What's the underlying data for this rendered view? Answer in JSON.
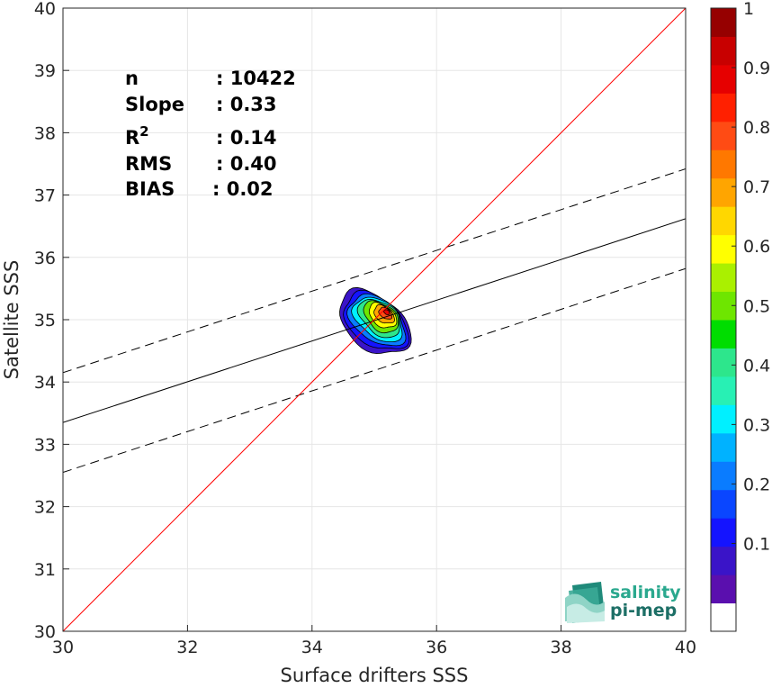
{
  "chart_data": {
    "type": "heatmap",
    "title": "",
    "xlabel": "Surface drifters SSS",
    "ylabel": "Satellite SSS",
    "xlim": [
      30,
      40
    ],
    "ylim": [
      30,
      40
    ],
    "xticks": [
      "30",
      "32",
      "34",
      "36",
      "38",
      "40"
    ],
    "yticks": [
      "30",
      "31",
      "32",
      "33",
      "34",
      "35",
      "36",
      "37",
      "38",
      "39",
      "40"
    ],
    "grid": true,
    "stats": [
      {
        "key": "n",
        "value": ": 10422"
      },
      {
        "key": "Slope",
        "value": ": 0.33"
      },
      {
        "key": "R",
        "sup": "2",
        "value": ": 0.14"
      },
      {
        "key": "RMS",
        "value": ": 0.40"
      },
      {
        "key": "BIAS",
        "value": ": 0.02"
      }
    ],
    "lines": {
      "identity": {
        "color": "#ff0000",
        "points": [
          [
            30,
            30
          ],
          [
            40,
            40
          ]
        ]
      },
      "regression": {
        "color": "#000000",
        "points": [
          [
            30,
            33.35
          ],
          [
            40,
            36.62
          ]
        ]
      },
      "upper_bound": {
        "color": "#000000",
        "dash": true,
        "points": [
          [
            30,
            34.15
          ],
          [
            40,
            37.42
          ]
        ]
      },
      "lower_bound": {
        "color": "#000000",
        "dash": true,
        "points": [
          [
            30,
            32.55
          ],
          [
            40,
            35.82
          ]
        ]
      }
    },
    "density": {
      "center": [
        35.0,
        34.95
      ],
      "peak": [
        35.2,
        35.12
      ],
      "levels": [
        0.05,
        0.1,
        0.2,
        0.3,
        0.4,
        0.5,
        0.6,
        0.7,
        0.8,
        0.9
      ]
    },
    "colorbar": {
      "range": [
        0,
        1
      ],
      "ticks": [
        "0.1",
        "0.2",
        "0.3",
        "0.4",
        "0.5",
        "0.6",
        "0.7",
        "0.8",
        "0.9",
        "1"
      ],
      "colors": [
        "#ffffff",
        "#5a0fae",
        "#3a14c8",
        "#1414ff",
        "#0a46ff",
        "#0a7cff",
        "#00b2ff",
        "#00f0ff",
        "#28f0b4",
        "#2de68c",
        "#00dd00",
        "#6ee600",
        "#aaf000",
        "#ffff00",
        "#ffd700",
        "#ffa500",
        "#ff7800",
        "#ff4b14",
        "#ff2000",
        "#e60000",
        "#c80000",
        "#960000"
      ]
    }
  },
  "logo": {
    "line1": "salinity",
    "line2": "pi-mep"
  }
}
